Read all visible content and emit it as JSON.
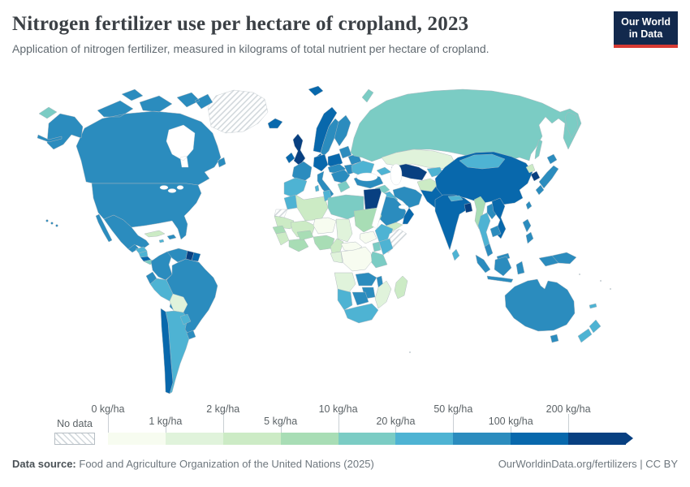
{
  "header": {
    "title": "Nitrogen fertilizer use per hectare of cropland, 2023",
    "subtitle": "Application of nitrogen fertilizer, measured in kilograms of total nutrient per hectare of cropland.",
    "logo": {
      "line1": "Our World",
      "line2": "in Data"
    }
  },
  "legend": {
    "no_data_label": "No data",
    "bins": [
      {
        "label": "0 kg/ha",
        "color": "#f7fcf0"
      },
      {
        "label": "1 kg/ha",
        "color": "#e0f3db"
      },
      {
        "label": "2 kg/ha",
        "color": "#ccebc5"
      },
      {
        "label": "5 kg/ha",
        "color": "#a8ddb5"
      },
      {
        "label": "10 kg/ha",
        "color": "#7bccc4"
      },
      {
        "label": "20 kg/ha",
        "color": "#4eb3d3"
      },
      {
        "label": "50 kg/ha",
        "color": "#2b8cbe"
      },
      {
        "label": "100 kg/ha",
        "color": "#0868ac"
      },
      {
        "label": "200 kg/ha",
        "color": "#084081"
      }
    ]
  },
  "footer": {
    "source_label": "Data source:",
    "source_text": "Food and Agriculture Organization of the United Nations (2025)",
    "credit": "OurWorldinData.org/fertilizers | CC BY"
  },
  "map": {
    "border_color": "#aeb7bd",
    "no_data_border": "#c2c9ce",
    "regions": {
      "greenland": "nd",
      "svalbard": 7,
      "iceland": 7,
      "canada": 6,
      "alaska": 6,
      "aleutians": 6,
      "usa": 6,
      "hawaii": 6,
      "mexico": 6,
      "baja": 6,
      "guatemala": 6,
      "honduras": 5,
      "nicaragua": 5,
      "costa-rica": 7,
      "panama": 4,
      "cuba": 2,
      "jamaica": 5,
      "hispaniola": 6,
      "colombia": 6,
      "venezuela": 6,
      "guyana": 8,
      "suriname": 7,
      "ecuador": 6,
      "peru": 5,
      "brazil": 6,
      "bolivia": 1,
      "paraguay": 5,
      "chile": 7,
      "argentina": 5,
      "uruguay": 6,
      "ireland": 7,
      "uk": 8,
      "norway": 7,
      "sweden": 6,
      "finland": 6,
      "denmark": 7,
      "baltics": 6,
      "belarus": 6,
      "poland": 7,
      "germany": 7,
      "france": 6,
      "iberia": 5,
      "italy": 6,
      "sardinia": 5,
      "austria-hungary": 6,
      "balkans": 6,
      "greece": 4,
      "romania": 6,
      "ukraine": 5,
      "russia": 4,
      "chukotka": 4,
      "kamchatka": 4,
      "sakhalin": 4,
      "novaya-zemlya": 4,
      "kazakhstan": 1,
      "uzbek-turkmen": 8,
      "kyrgyz-tajik": 5,
      "caucasus": 5,
      "turkey": 6,
      "syria": 4,
      "iraq": 5,
      "iran": 6,
      "afghanistan": 2,
      "pakistan": 7,
      "saudi": 6,
      "yemen": 2,
      "oman": 7,
      "morocco": 5,
      "algeria": 2,
      "tunisia": 5,
      "libya": 4,
      "egypt": 8,
      "w-sahara": "nd",
      "mauritania": 2,
      "mali": 2,
      "niger": 0,
      "chad": 1,
      "sudan": 3,
      "senegal": 3,
      "guinea": 2,
      "ivory-ghana": 3,
      "burkina": 3,
      "nigeria": 3,
      "cameroon": 2,
      "car": 0,
      "south-sudan": 0,
      "ethiopia": 5,
      "somalia": "nd",
      "kenya": 5,
      "uganda": 4,
      "tanzania": 4,
      "drc": 0,
      "congo-gabon": 1,
      "angola": 1,
      "zambia": 6,
      "malawi": 6,
      "mozambique": 1,
      "zimbabwe": 6,
      "botswana": 6,
      "namibia": 5,
      "south-africa": 5,
      "madagascar": 2,
      "india": 7,
      "nepal": 5,
      "bangladesh": 8,
      "sri-lanka": 5,
      "myanmar": 3,
      "thailand": 5,
      "laos": 6,
      "vietnam": 7,
      "cambodia": 6,
      "malaysia": 6,
      "indonesia": 6,
      "philippines": 6,
      "png": 6,
      "china": 7,
      "mongolia": 5,
      "north-korea": 2,
      "south-korea": 8,
      "japan": 6,
      "taiwan": 6,
      "australia": 6,
      "tasmania": 6,
      "new-zealand": 5,
      "new-caledonia": 5
    }
  }
}
